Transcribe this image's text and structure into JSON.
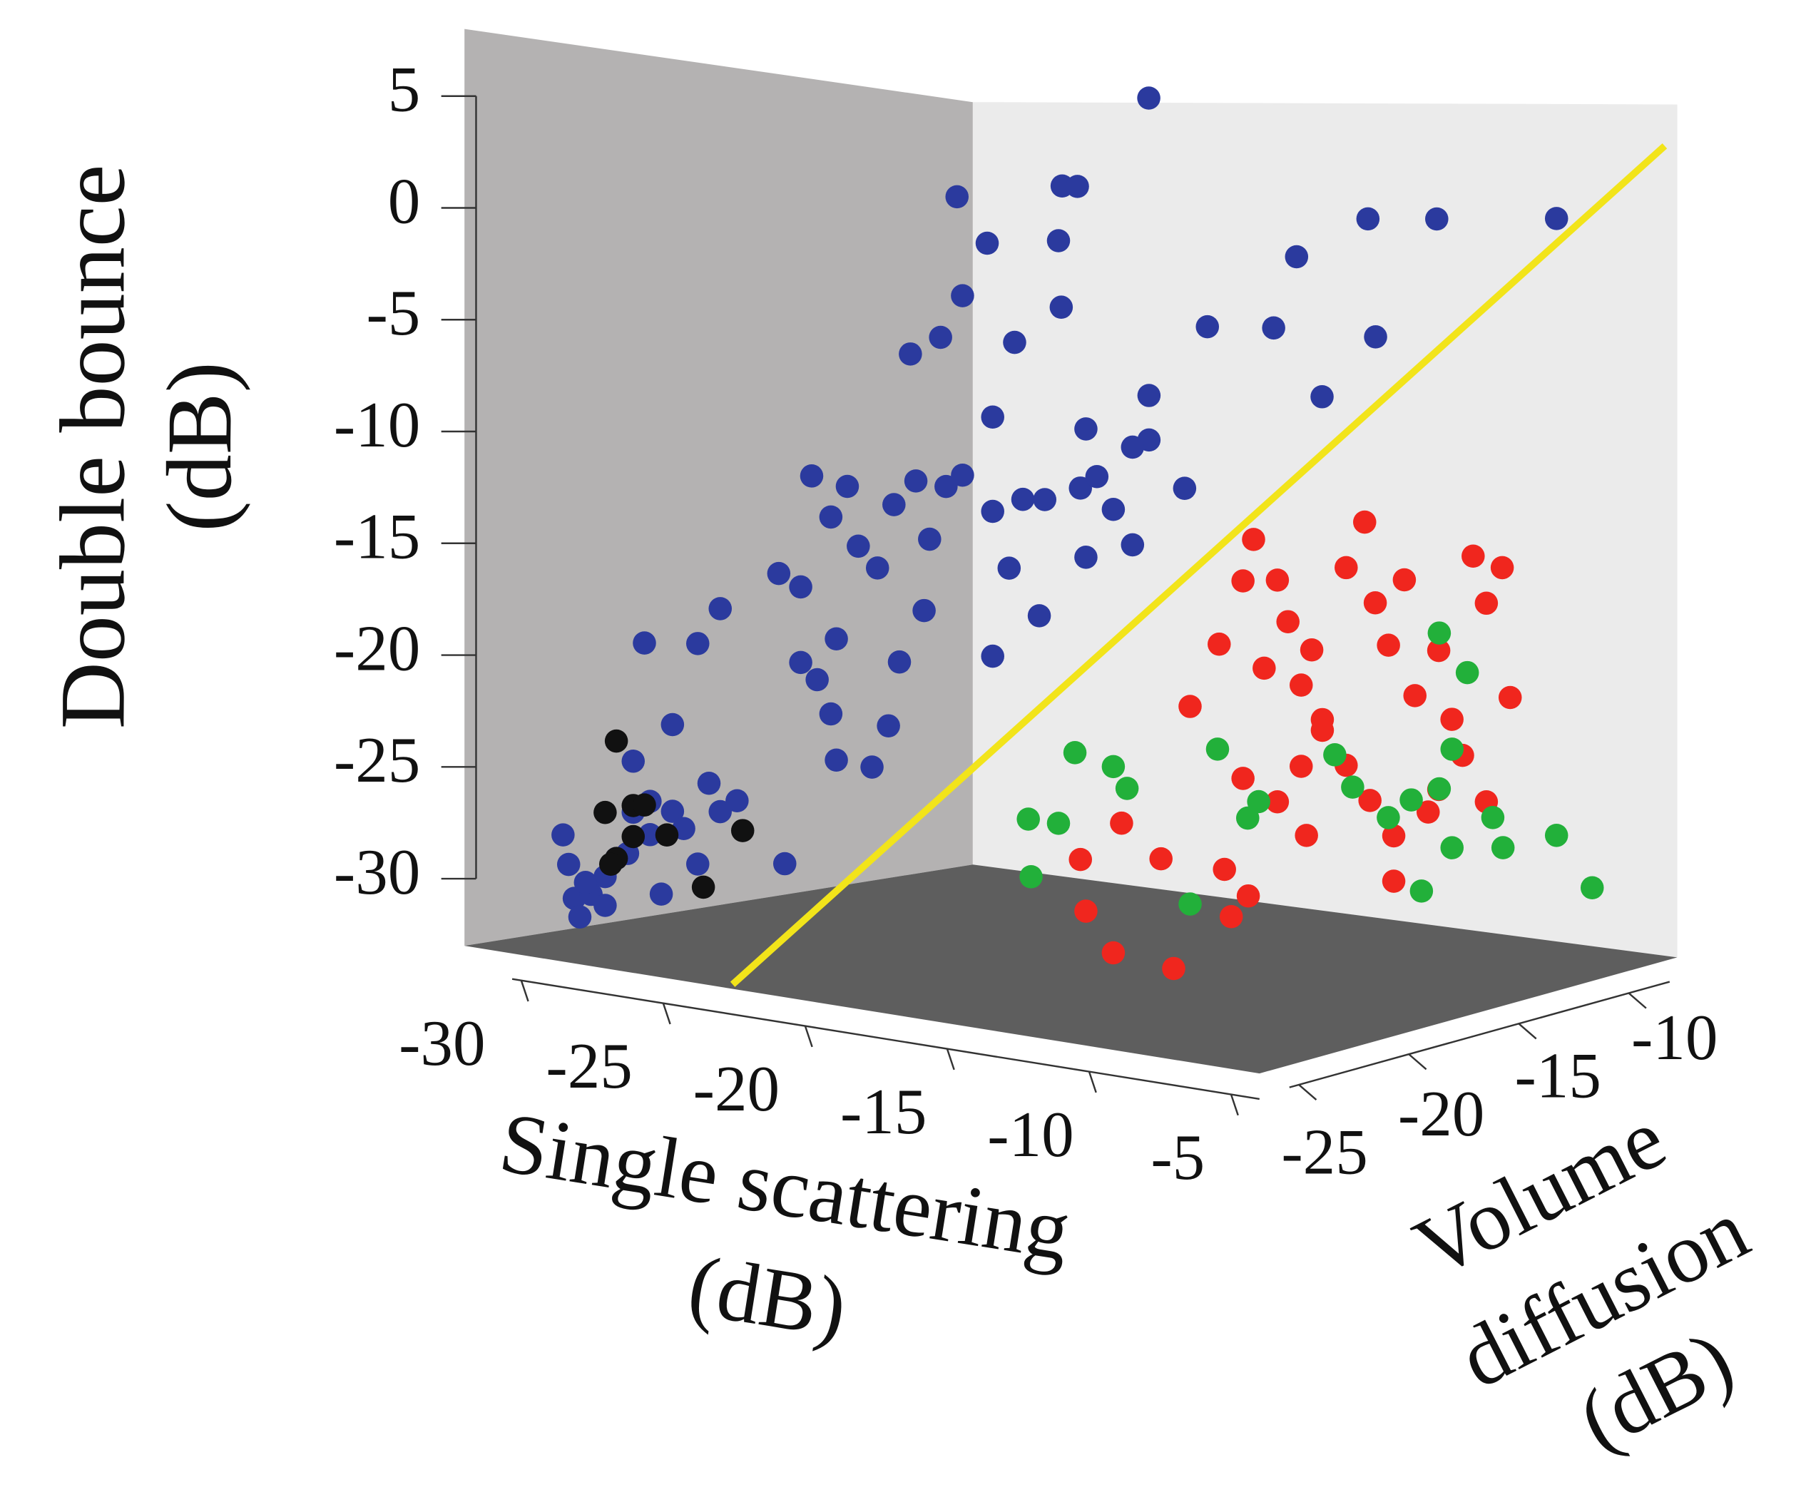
{
  "chart_data": {
    "type": "scatter3d",
    "xlabel": [
      "Single scattering",
      "(dB)"
    ],
    "ylabel": [
      "Volume",
      "diffusion",
      "(dB)"
    ],
    "zlabel": [
      "Double bounce",
      "(dB)"
    ],
    "xlim": [
      -32,
      -4
    ],
    "ylim": [
      -26,
      -7
    ],
    "zlim": [
      -33,
      8
    ],
    "xticks": [
      -30,
      -25,
      -20,
      -15,
      -10,
      -5
    ],
    "yticks": [
      -25,
      -20,
      -15,
      -10
    ],
    "zticks": [
      5,
      0,
      -5,
      -10,
      -15,
      -20,
      -25,
      -30
    ],
    "wall_colors": {
      "left": "#b4b2b2",
      "back": "#ebebeb",
      "floor": "#5e5e5e"
    },
    "series": [
      {
        "color": "#2b3a9e",
        "x": [
          -30.3,
          -30.1,
          -29.9,
          -29.7,
          -29.3,
          -28.8,
          -28.4,
          -28.0,
          -27.8,
          -27.2,
          -26.8,
          -26.4,
          -26.0,
          -25.5,
          -25.1,
          -24.7,
          -24.1,
          -27.2,
          -27.8,
          -26.4,
          -27.4,
          -25.5,
          -24.7,
          -22.4,
          -28.8,
          -29.5,
          -26.1,
          -25.3,
          -24.9,
          -24.2,
          -24.0,
          -23.6,
          -23.2,
          -22.5,
          -21.9,
          -21.1,
          -20.6,
          -20.0,
          -19.4,
          -18.3,
          -17.7,
          -17.2,
          -16.4,
          -15.1,
          -14.5,
          -13.9,
          -13.2,
          -12.6,
          -11.3,
          -25.3,
          -24.7,
          -24.2,
          -24.0,
          -22.7,
          -22.1,
          -21.7,
          -20.8,
          -18.3,
          -16.6,
          -14.9,
          -18.3,
          -14.9,
          -15.8,
          -17.5,
          -21.3,
          -20.2,
          -19.4,
          -18.5,
          -19.6,
          -15.9,
          -13.2,
          -12.6,
          -23.1,
          -26.5,
          -25.9,
          -20.8,
          -18.2,
          -17.3,
          -14.5,
          -11.8,
          -7.1,
          -14.2,
          -16.3
        ],
        "y": [
          -24.1,
          -24.1,
          -24.1,
          -24.1,
          -24.1,
          -24.1,
          -24.1,
          -24.1,
          -24.1,
          -24.1,
          -24.1,
          -24.1,
          -24.1,
          -24.1,
          -24.1,
          -24.1,
          -24.1,
          -24.1,
          -24.1,
          -24.1,
          -24.1,
          -24.1,
          -24.1,
          -24.1,
          -24.1,
          -24.1,
          -20.3,
          -20.3,
          -20.3,
          -20.3,
          -20.3,
          -20.3,
          -20.3,
          -20.3,
          -20.3,
          -20.3,
          -20.3,
          -20.3,
          -20.3,
          -20.3,
          -20.3,
          -20.3,
          -20.3,
          -20.3,
          -20.3,
          -20.3,
          -20.3,
          -20.3,
          -20.3,
          -20.3,
          -20.3,
          -20.3,
          -20.3,
          -20.3,
          -20.3,
          -20.3,
          -20.3,
          -20.3,
          -20.3,
          -20.3,
          -20.3,
          -20.3,
          -20.3,
          -20.3,
          -20.3,
          -20.3,
          -20.3,
          -20.3,
          -20.3,
          -20.3,
          -20.3,
          -20.3,
          -8.9,
          -8.9,
          -8.9,
          -8.9,
          -8.9,
          -8.9,
          -8.9,
          -8.9,
          -8.9,
          -8.9,
          -8.9
        ],
        "z": [
          -28.0,
          -29.3,
          -30.8,
          -31.6,
          -30.5,
          -29.6,
          -28.7,
          -28.4,
          -26.5,
          -27.4,
          -30.0,
          -26.2,
          -26.9,
          -28.4,
          -24.7,
          -25.9,
          -25.3,
          -25.9,
          -24.2,
          -22.3,
          -18.8,
          -18.5,
          -16.8,
          -27.8,
          -30.9,
          -30.0,
          -15.7,
          -16.2,
          -11.0,
          -12.8,
          -18.4,
          -11.3,
          -14.0,
          -14.9,
          -11.9,
          -10.7,
          -13.3,
          -10.8,
          -10.2,
          -11.7,
          -14.2,
          -11.0,
          -10.9,
          -10.2,
          -9.6,
          -11.0,
          -12.5,
          -7.7,
          -9.7,
          -19.7,
          -20.4,
          -21.9,
          -24.0,
          -24.1,
          -22.1,
          -19.1,
          -16.6,
          -18.3,
          -16.2,
          -13.3,
          -7.4,
          -7.5,
          -2.1,
          -3.9,
          -4.9,
          -4.0,
          -2.0,
          0.5,
          2.5,
          0.9,
          -8.1,
          -5.7,
          8.0,
          3.4,
          3.4,
          -3.5,
          -3.4,
          0.2,
          2.2,
          2.3,
          2.5,
          -3.6,
          -6.7
        ]
      },
      {
        "color": "#111111",
        "x": [
          -28.4,
          -28.8,
          -27.8,
          -27.4,
          -28.4,
          -28.6,
          -27.8,
          -25.3,
          -23.9,
          -26.6
        ],
        "y": [
          -24.1,
          -24.1,
          -24.1,
          -24.1,
          -24.1,
          -24.1,
          -24.1,
          -24.1,
          -24.1,
          -24.1
        ],
        "z": [
          -23.4,
          -26.7,
          -26.2,
          -26.1,
          -28.7,
          -29.0,
          -27.6,
          -29.4,
          -26.6,
          -27.3
        ]
      },
      {
        "color": "#f0261e",
        "x": [
          -16.1,
          -15.0,
          -14.1,
          -13.7,
          -12.8,
          -12.4,
          -13.3,
          -11.9,
          -11.5,
          -11.1,
          -10.2,
          -9.5,
          -9.1,
          -8.6,
          -8.0,
          -7.6,
          -6.7,
          -6.2,
          -5.4,
          -4.9,
          -4.3,
          -4.0,
          -4.9,
          -5.8,
          -7.1,
          -8.4,
          -9.3,
          -10.2,
          -11.1,
          -11.9,
          -12.8,
          -14.1,
          -17.2,
          -14.8,
          -13.9,
          -8.4,
          -11.7,
          -6.7,
          -15.1,
          -14.9,
          -13.9,
          -11.7,
          -9.6,
          -13.6
        ],
        "y": [
          -14.6,
          -14.6,
          -14.6,
          -14.6,
          -14.6,
          -14.6,
          -14.6,
          -14.6,
          -14.6,
          -14.6,
          -14.6,
          -14.6,
          -14.6,
          -14.6,
          -14.6,
          -14.6,
          -14.6,
          -14.6,
          -14.6,
          -14.6,
          -14.6,
          -14.6,
          -14.6,
          -14.6,
          -14.6,
          -14.6,
          -14.6,
          -14.6,
          -14.6,
          -14.6,
          -14.6,
          -14.6,
          -14.6,
          -14.6,
          -14.6,
          -14.6,
          -14.6,
          -14.6,
          -20.3,
          -20.3,
          -20.3,
          -20.3,
          -20.3,
          -20.3
        ],
        "z": [
          -21.1,
          -18.0,
          -14.9,
          -12.9,
          -14.7,
          -16.6,
          -18.9,
          -19.5,
          -17.8,
          -21.0,
          -13.8,
          -11.6,
          -15.3,
          -17.2,
          -14.1,
          -19.4,
          -17.2,
          -20.3,
          -12.7,
          -14.8,
          -13.1,
          -19.0,
          -23.9,
          -21.9,
          -24.7,
          -26.0,
          -24.5,
          -23.0,
          -21.5,
          -23.3,
          -25.1,
          -24.2,
          -28.5,
          -28.6,
          -29.7,
          -28.1,
          -26.5,
          -23.6,
          -27.0,
          -29.3,
          -31.0,
          -31.3,
          -28.6,
          -25.1
        ]
      },
      {
        "color": "#22b03a",
        "x": [
          -16.9,
          -17.0,
          -15.9,
          -15.3,
          -13.9,
          -13.4,
          -11.1,
          -10.1,
          -9.0,
          -8.6,
          -11.7,
          -10.6,
          -11.2,
          -11.7,
          -12.8,
          -13.7,
          -15.1,
          -15.8,
          -11.2,
          -9.6,
          -9.2,
          -7.1,
          -5.7,
          -12.4
        ],
        "y": [
          -20.3,
          -20.3,
          -20.3,
          -20.3,
          -20.3,
          -20.3,
          -20.3,
          -20.3,
          -20.3,
          -20.3,
          -8.9,
          -8.9,
          -8.9,
          -8.9,
          -8.9,
          -8.9,
          -8.9,
          -8.9,
          -8.9,
          -8.9,
          -8.9,
          -8.9,
          -8.9,
          -8.9
        ],
        "z": [
          -28.1,
          -25.5,
          -25.5,
          -22.2,
          -22.6,
          -23.5,
          -28.3,
          -21.2,
          -24.1,
          -23.3,
          -17.9,
          -19.7,
          -23.5,
          -25.5,
          -26.2,
          -27.2,
          -25.9,
          -24.4,
          -28.3,
          -26.6,
          -28.0,
          -27.1,
          -29.4,
          -30.6
        ]
      }
    ],
    "boundary": {
      "color": "#f2e41a",
      "x": [
        -23,
        -4.5
      ],
      "y": [
        -25.5,
        -7
      ],
      "z": [
        -33,
        6
      ]
    }
  }
}
